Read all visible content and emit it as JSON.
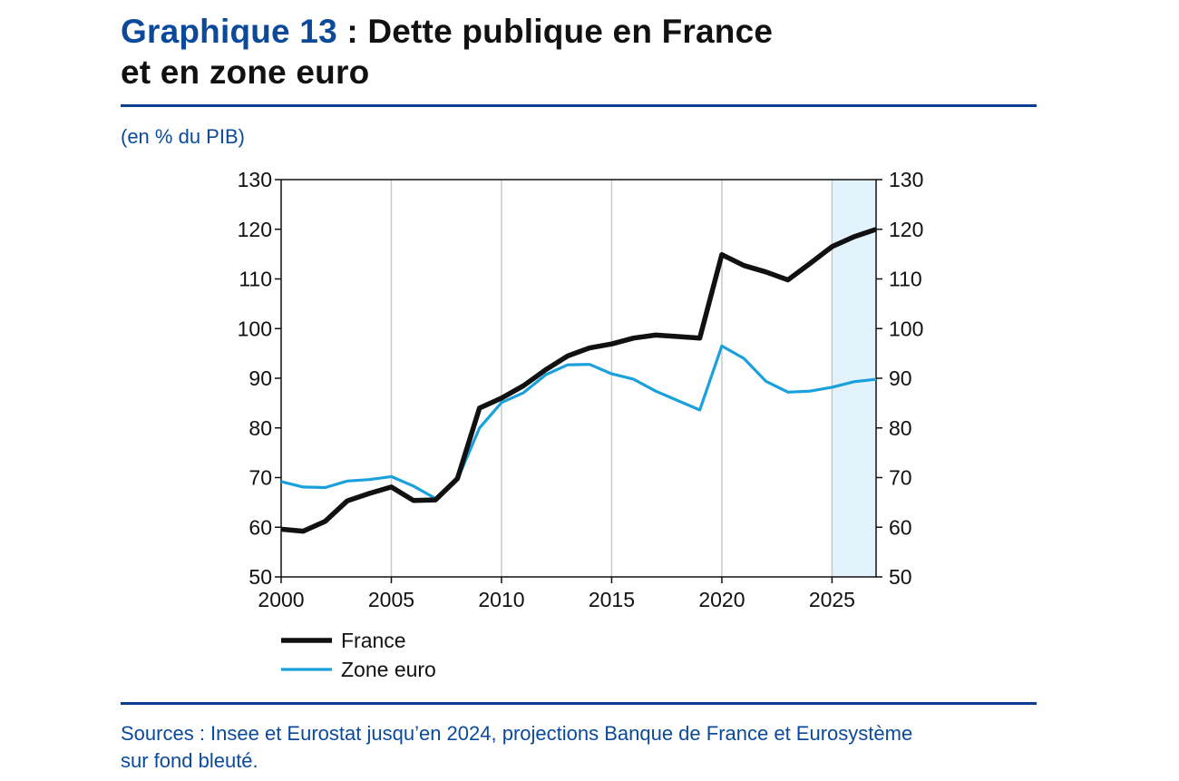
{
  "header": {
    "title_number": "Graphique 13",
    "title_rest": " : Dette publique en France",
    "title_line2": "et en zone euro",
    "unit": "(en % du PIB)"
  },
  "footer": {
    "sources_line1": "Sources : Insee et Eurostat jusqu’en 2024, projections Banque de France et Eurosystème",
    "sources_line2": "sur fond bleuté."
  },
  "colors": {
    "france": "#111111",
    "zone_euro": "#1aa0dc",
    "projection_band": "#e3f3fb",
    "title_blue": "#0b4a9a",
    "grid": "#c8c8c8"
  },
  "chart_data": {
    "type": "line",
    "title": "Dette publique en France et en zone euro",
    "ylabel": "(en % du PIB)",
    "xlim": [
      2000,
      2027
    ],
    "ylim": [
      50,
      130
    ],
    "x_ticks": [
      2000,
      2005,
      2010,
      2015,
      2020,
      2025
    ],
    "y_ticks": [
      50,
      60,
      70,
      80,
      90,
      100,
      110,
      120,
      130
    ],
    "grid": "vertical",
    "legend_position": "bottom-left",
    "projection_shading": {
      "from": 2025,
      "to": 2027
    },
    "x": [
      2000,
      2001,
      2002,
      2003,
      2004,
      2005,
      2006,
      2007,
      2008,
      2009,
      2010,
      2011,
      2012,
      2013,
      2014,
      2015,
      2016,
      2017,
      2018,
      2019,
      2020,
      2021,
      2022,
      2023,
      2024,
      2025,
      2026,
      2027
    ],
    "series": [
      {
        "name": "France",
        "values": [
          59.6,
          59.2,
          61.2,
          65.3,
          66.8,
          68.1,
          65.4,
          65.5,
          69.8,
          84.0,
          86.0,
          88.5,
          91.7,
          94.5,
          96.1,
          96.9,
          98.1,
          98.7,
          98.4,
          98.1,
          114.9,
          112.7,
          111.4,
          109.8,
          113.1,
          116.5,
          118.5,
          120.0
        ]
      },
      {
        "name": "Zone euro",
        "values": [
          69.2,
          68.1,
          68.0,
          69.3,
          69.6,
          70.2,
          68.3,
          65.8,
          69.6,
          80.0,
          85.1,
          87.1,
          90.7,
          92.7,
          92.8,
          90.9,
          89.8,
          87.4,
          85.5,
          83.6,
          96.5,
          94.0,
          89.4,
          87.2,
          87.4,
          88.2,
          89.3,
          89.8
        ]
      }
    ]
  }
}
